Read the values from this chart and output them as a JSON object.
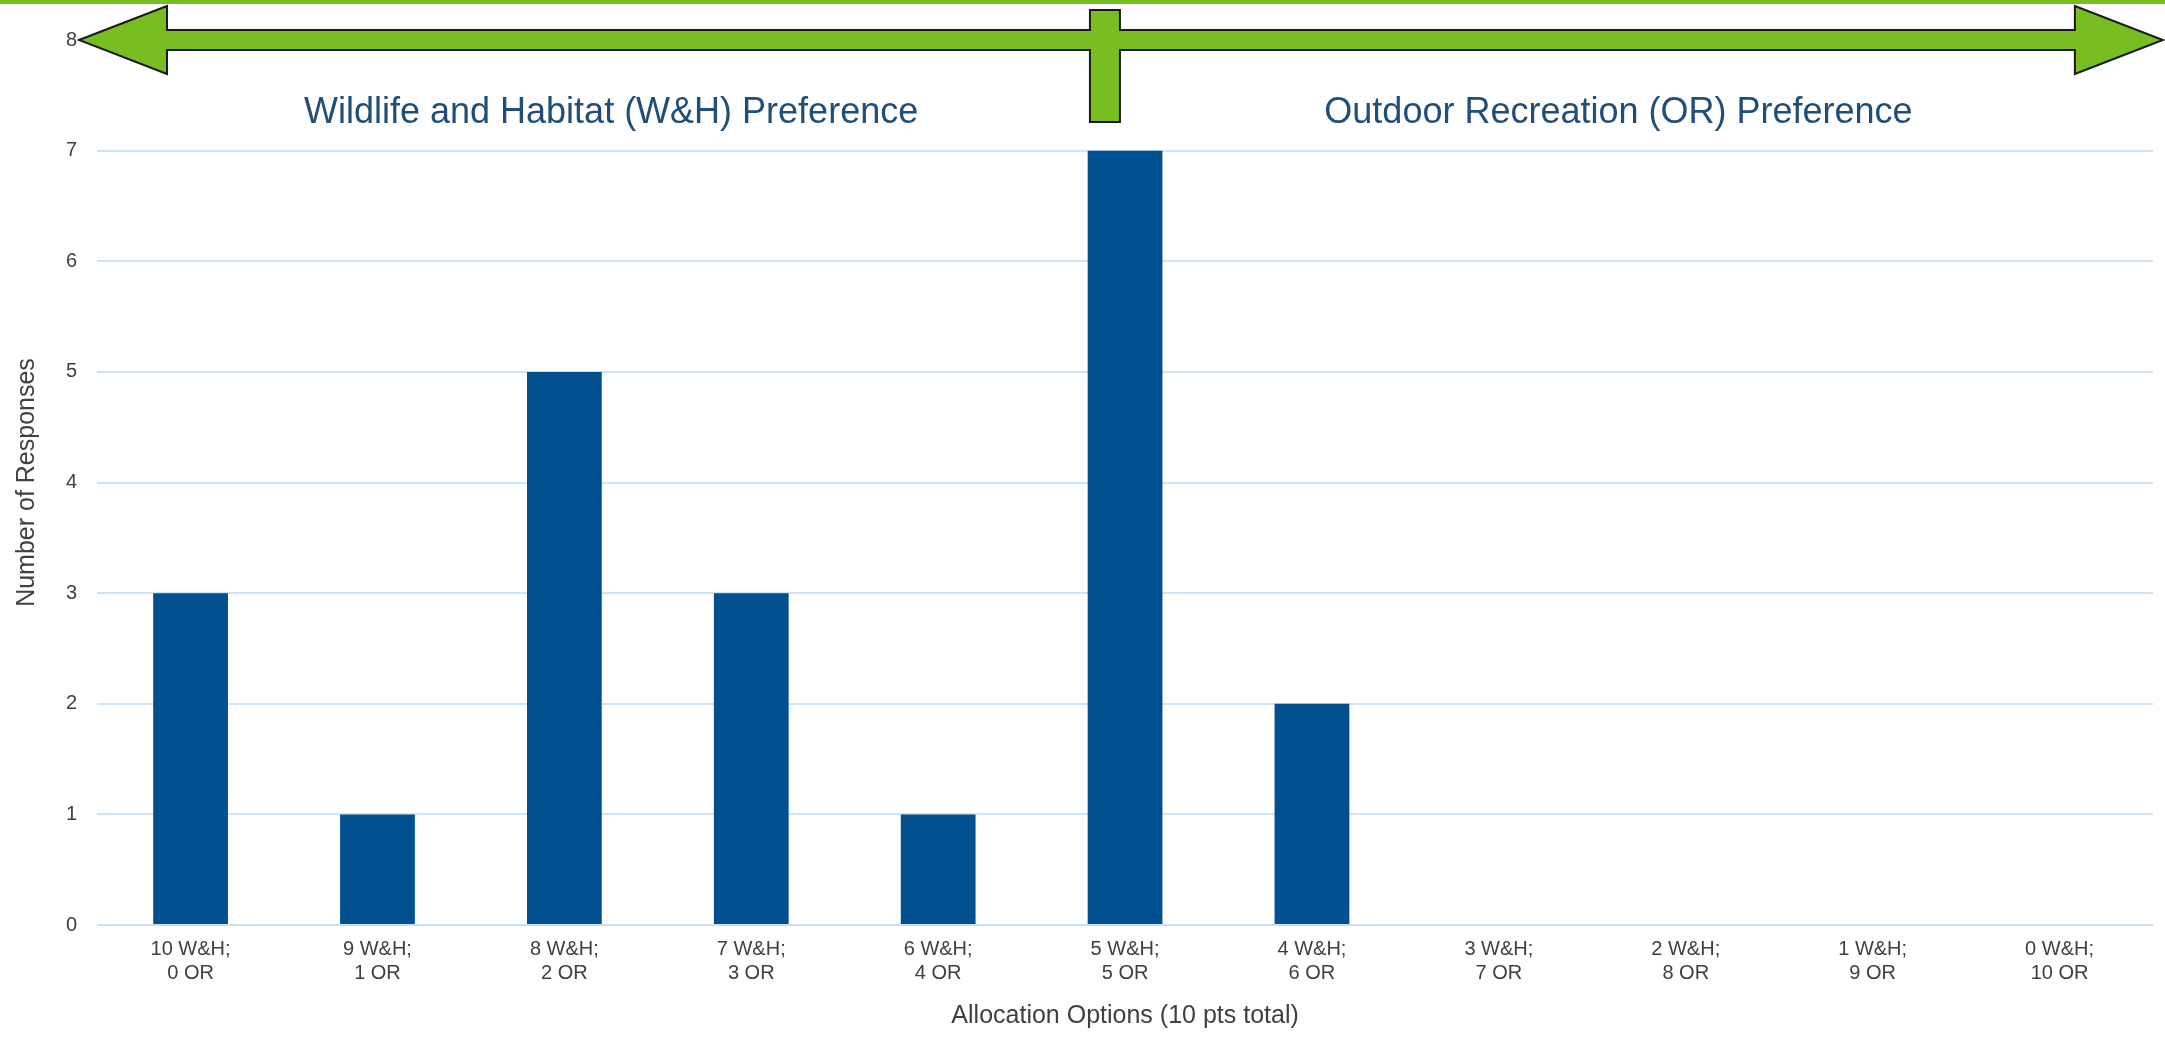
{
  "chart_data": {
    "type": "bar",
    "categories": [
      "10 W&H; 0 OR",
      "9 W&H; 1 OR",
      "8 W&H; 2 OR",
      "7 W&H; 3 OR",
      "6 W&H; 4 OR",
      "5 W&H; 5 OR",
      "4 W&H; 6 OR",
      "3 W&H; 7 OR",
      "2 W&H; 8 OR",
      "1 W&H; 9 OR",
      "0 W&H; 10 OR"
    ],
    "values": [
      3,
      1,
      5,
      3,
      1,
      7,
      2,
      0,
      0,
      0,
      0
    ],
    "color": "#00508f",
    "xlabel": "Allocation Options (10 pts total)",
    "ylabel": "Number of Responses",
    "ylim": [
      0,
      8
    ],
    "yticks": [
      0,
      1,
      2,
      3,
      4,
      5,
      6,
      7,
      8
    ],
    "grid": "y",
    "legend": false,
    "annotations": [
      "Wildlife and Habitat (W&H) Preference",
      "Outdoor Recreation (OR) Preference"
    ]
  }
}
